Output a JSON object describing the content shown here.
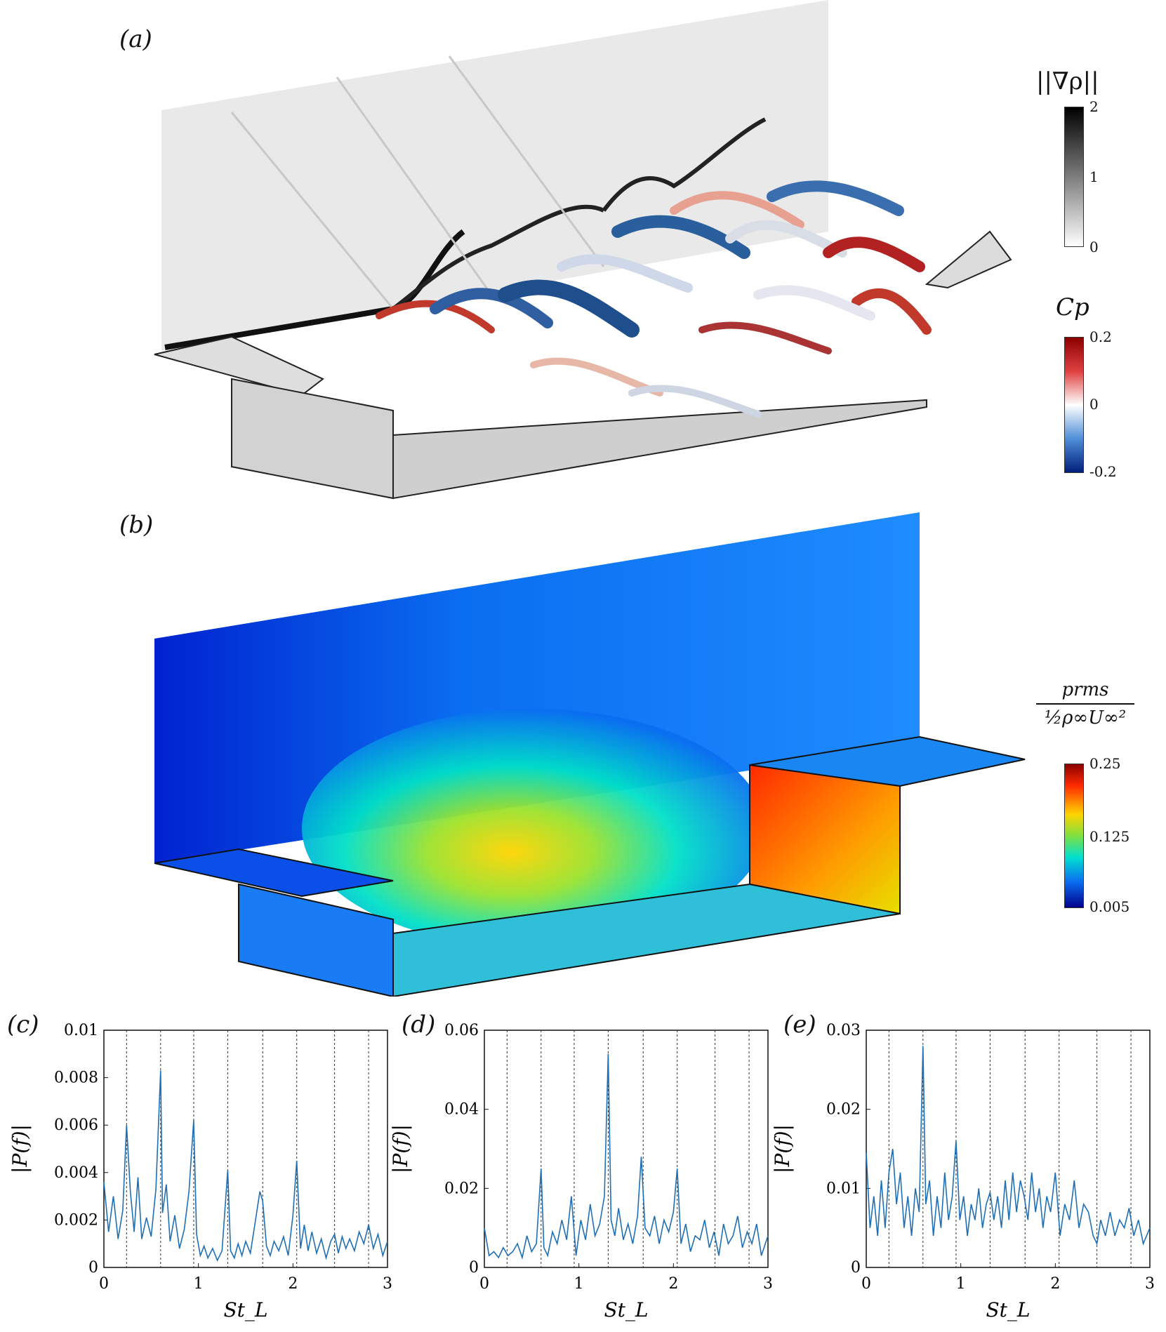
{
  "panels": {
    "a": {
      "label": "(a)",
      "cb1_title": "||∇ρ||",
      "cb1_ticks": [
        "2",
        "1",
        "0"
      ],
      "cb2_title": "Cp",
      "cb2_ticks": [
        "0.2",
        "0",
        "-0.2"
      ]
    },
    "b": {
      "label": "(b)",
      "cb_num": "prms",
      "cb_den": "½ρ∞U∞²",
      "cb_ticks": [
        "0.25",
        "0.125",
        "0.005"
      ]
    }
  },
  "colors": {
    "line": "#1f6fb5",
    "black": "#000000"
  },
  "chart_data": [
    {
      "type": "line",
      "label": "(c)",
      "xlabel": "St_L",
      "ylabel": "|P(f)|",
      "xlim": [
        0,
        3
      ],
      "ylim": [
        0,
        0.01
      ],
      "xticks": [
        "0",
        "1",
        "2",
        "3"
      ],
      "yticks": [
        "0",
        "0.002",
        "0.004",
        "0.006",
        "0.008",
        "0.01"
      ],
      "vlines": [
        0.24,
        0.6,
        0.95,
        1.31,
        1.68,
        2.04,
        2.44,
        2.8
      ],
      "series": [
        {
          "x": [
            0,
            0.05,
            0.1,
            0.15,
            0.2,
            0.24,
            0.28,
            0.32,
            0.36,
            0.4,
            0.45,
            0.5,
            0.55,
            0.6,
            0.62,
            0.66,
            0.7,
            0.75,
            0.8,
            0.85,
            0.9,
            0.95,
            0.98,
            1.02,
            1.06,
            1.1,
            1.15,
            1.2,
            1.25,
            1.31,
            1.34,
            1.38,
            1.42,
            1.46,
            1.5,
            1.55,
            1.6,
            1.65,
            1.68,
            1.72,
            1.76,
            1.8,
            1.85,
            1.9,
            1.95,
            2.0,
            2.04,
            2.08,
            2.12,
            2.16,
            2.2,
            2.25,
            2.3,
            2.35,
            2.4,
            2.44,
            2.48,
            2.52,
            2.56,
            2.6,
            2.65,
            2.7,
            2.75,
            2.8,
            2.85,
            2.9,
            2.95,
            3.0
          ],
          "y": [
            0.0036,
            0.0015,
            0.003,
            0.0012,
            0.0024,
            0.006,
            0.0032,
            0.0015,
            0.0038,
            0.0012,
            0.0021,
            0.0013,
            0.0033,
            0.0083,
            0.0023,
            0.0035,
            0.0011,
            0.0022,
            0.0008,
            0.0016,
            0.0032,
            0.0062,
            0.0014,
            0.0005,
            0.0009,
            0.0004,
            0.0008,
            0.0003,
            0.0007,
            0.0041,
            0.0007,
            0.0004,
            0.001,
            0.0005,
            0.0011,
            0.0006,
            0.0019,
            0.0032,
            0.0028,
            0.0009,
            0.0005,
            0.0011,
            0.0007,
            0.0013,
            0.0005,
            0.0022,
            0.0045,
            0.0008,
            0.0018,
            0.0007,
            0.0015,
            0.0006,
            0.0012,
            0.0004,
            0.0011,
            0.0014,
            0.0006,
            0.0013,
            0.0008,
            0.0012,
            0.0007,
            0.0015,
            0.001,
            0.0018,
            0.0008,
            0.0014,
            0.0005,
            0.0011
          ]
        }
      ]
    },
    {
      "type": "line",
      "label": "(d)",
      "xlabel": "St_L",
      "ylabel": "|P(f)|",
      "xlim": [
        0,
        3
      ],
      "ylim": [
        0,
        0.06
      ],
      "xticks": [
        "0",
        "1",
        "2",
        "3"
      ],
      "yticks": [
        "0",
        "0.02",
        "0.04",
        "0.06"
      ],
      "vlines": [
        0.24,
        0.6,
        0.95,
        1.31,
        1.68,
        2.04,
        2.44,
        2.8
      ],
      "series": [
        {
          "x": [
            0,
            0.05,
            0.1,
            0.15,
            0.2,
            0.25,
            0.3,
            0.35,
            0.4,
            0.45,
            0.5,
            0.55,
            0.6,
            0.63,
            0.67,
            0.72,
            0.77,
            0.82,
            0.87,
            0.92,
            0.97,
            1.02,
            1.07,
            1.12,
            1.17,
            1.22,
            1.27,
            1.31,
            1.34,
            1.38,
            1.42,
            1.47,
            1.52,
            1.57,
            1.62,
            1.66,
            1.7,
            1.75,
            1.8,
            1.85,
            1.9,
            1.95,
            2.0,
            2.04,
            2.08,
            2.13,
            2.18,
            2.23,
            2.28,
            2.33,
            2.38,
            2.43,
            2.48,
            2.53,
            2.58,
            2.63,
            2.68,
            2.73,
            2.78,
            2.83,
            2.88,
            2.93,
            3.0
          ],
          "y": [
            0.01,
            0.003,
            0.004,
            0.0025,
            0.005,
            0.003,
            0.004,
            0.006,
            0.0025,
            0.008,
            0.004,
            0.006,
            0.025,
            0.005,
            0.003,
            0.009,
            0.006,
            0.012,
            0.007,
            0.018,
            0.003,
            0.012,
            0.007,
            0.016,
            0.008,
            0.011,
            0.018,
            0.054,
            0.012,
            0.008,
            0.015,
            0.007,
            0.011,
            0.006,
            0.013,
            0.028,
            0.01,
            0.008,
            0.013,
            0.006,
            0.012,
            0.009,
            0.014,
            0.025,
            0.006,
            0.011,
            0.004,
            0.008,
            0.007,
            0.012,
            0.005,
            0.009,
            0.003,
            0.011,
            0.006,
            0.008,
            0.013,
            0.005,
            0.009,
            0.006,
            0.011,
            0.003,
            0.008
          ]
        }
      ]
    },
    {
      "type": "line",
      "label": "(e)",
      "xlabel": "St_L",
      "ylabel": "|P(f)|",
      "xlim": [
        0,
        3
      ],
      "ylim": [
        0,
        0.03
      ],
      "xticks": [
        "0",
        "1",
        "2",
        "3"
      ],
      "yticks": [
        "0",
        "0.01",
        "0.02",
        "0.03"
      ],
      "vlines": [
        0.24,
        0.6,
        0.95,
        1.31,
        1.68,
        2.04,
        2.44,
        2.8
      ],
      "series": [
        {
          "x": [
            0,
            0.04,
            0.08,
            0.12,
            0.16,
            0.2,
            0.24,
            0.28,
            0.32,
            0.36,
            0.4,
            0.44,
            0.48,
            0.52,
            0.56,
            0.6,
            0.63,
            0.67,
            0.71,
            0.75,
            0.79,
            0.83,
            0.87,
            0.91,
            0.95,
            0.99,
            1.03,
            1.07,
            1.11,
            1.15,
            1.19,
            1.23,
            1.27,
            1.31,
            1.35,
            1.39,
            1.43,
            1.47,
            1.51,
            1.55,
            1.59,
            1.63,
            1.67,
            1.71,
            1.75,
            1.79,
            1.83,
            1.87,
            1.91,
            1.95,
            2.0,
            2.05,
            2.1,
            2.15,
            2.2,
            2.25,
            2.3,
            2.35,
            2.4,
            2.44,
            2.48,
            2.53,
            2.58,
            2.63,
            2.68,
            2.73,
            2.78,
            2.83,
            2.88,
            2.93,
            3.0
          ],
          "y": [
            0.0145,
            0.005,
            0.009,
            0.004,
            0.011,
            0.005,
            0.012,
            0.015,
            0.008,
            0.012,
            0.005,
            0.009,
            0.004,
            0.01,
            0.007,
            0.028,
            0.008,
            0.011,
            0.004,
            0.009,
            0.005,
            0.012,
            0.006,
            0.009,
            0.016,
            0.006,
            0.009,
            0.004,
            0.008,
            0.006,
            0.01,
            0.005,
            0.008,
            0.0095,
            0.006,
            0.009,
            0.005,
            0.011,
            0.006,
            0.012,
            0.007,
            0.011,
            0.009,
            0.006,
            0.012,
            0.007,
            0.01,
            0.005,
            0.009,
            0.007,
            0.012,
            0.004,
            0.008,
            0.006,
            0.011,
            0.005,
            0.008,
            0.007,
            0.004,
            0.003,
            0.006,
            0.004,
            0.007,
            0.004,
            0.006,
            0.005,
            0.0075,
            0.004,
            0.006,
            0.003,
            0.005
          ]
        }
      ]
    }
  ]
}
